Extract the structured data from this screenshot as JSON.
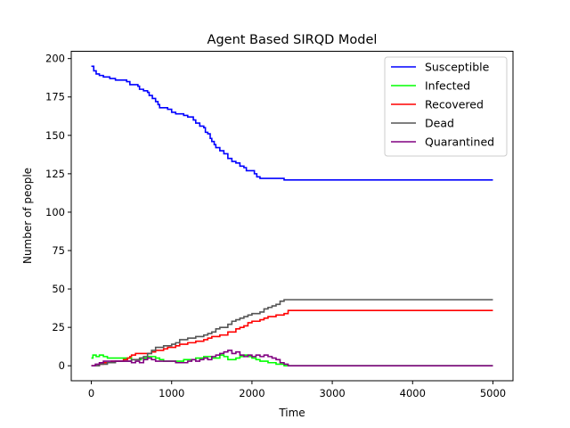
{
  "chart_data": {
    "type": "line",
    "title": "Agent Based SIRQD Model",
    "xlabel": "Time",
    "ylabel": "Number of people",
    "xlim": [
      -250,
      5250
    ],
    "ylim": [
      -9.75,
      204.75
    ],
    "xticks": [
      0,
      1000,
      2000,
      3000,
      4000,
      5000
    ],
    "yticks": [
      0,
      25,
      50,
      75,
      100,
      125,
      150,
      175,
      200
    ],
    "grid": false,
    "legend_position": "top-right",
    "series": [
      {
        "name": "Susceptible",
        "color": "#0000ff",
        "points": [
          [
            0,
            195
          ],
          [
            30,
            192
          ],
          [
            60,
            190
          ],
          [
            100,
            189
          ],
          [
            150,
            188
          ],
          [
            200,
            188
          ],
          [
            230,
            187
          ],
          [
            300,
            186
          ],
          [
            400,
            186
          ],
          [
            440,
            185
          ],
          [
            480,
            183
          ],
          [
            550,
            183
          ],
          [
            580,
            182
          ],
          [
            600,
            180
          ],
          [
            650,
            179
          ],
          [
            700,
            178
          ],
          [
            720,
            176
          ],
          [
            760,
            174
          ],
          [
            800,
            172
          ],
          [
            830,
            170
          ],
          [
            850,
            168
          ],
          [
            900,
            168
          ],
          [
            950,
            167
          ],
          [
            1000,
            165
          ],
          [
            1050,
            164
          ],
          [
            1100,
            164
          ],
          [
            1150,
            163
          ],
          [
            1200,
            162
          ],
          [
            1250,
            162
          ],
          [
            1270,
            160
          ],
          [
            1300,
            158
          ],
          [
            1350,
            156
          ],
          [
            1400,
            155
          ],
          [
            1420,
            152
          ],
          [
            1450,
            151
          ],
          [
            1480,
            148
          ],
          [
            1500,
            146
          ],
          [
            1530,
            144
          ],
          [
            1550,
            142
          ],
          [
            1600,
            140
          ],
          [
            1650,
            138
          ],
          [
            1700,
            135
          ],
          [
            1750,
            133
          ],
          [
            1800,
            132
          ],
          [
            1850,
            130
          ],
          [
            1900,
            129
          ],
          [
            1930,
            127
          ],
          [
            2000,
            127
          ],
          [
            2030,
            125
          ],
          [
            2060,
            123
          ],
          [
            2100,
            122
          ],
          [
            2300,
            122
          ],
          [
            2400,
            121
          ],
          [
            5000,
            121
          ]
        ]
      },
      {
        "name": "Infected",
        "color": "#00ff00",
        "points": [
          [
            0,
            5
          ],
          [
            20,
            7
          ],
          [
            60,
            6
          ],
          [
            100,
            7
          ],
          [
            150,
            6
          ],
          [
            200,
            5
          ],
          [
            300,
            5
          ],
          [
            400,
            5
          ],
          [
            500,
            4
          ],
          [
            560,
            4
          ],
          [
            620,
            5
          ],
          [
            700,
            6
          ],
          [
            750,
            6
          ],
          [
            800,
            5
          ],
          [
            850,
            4
          ],
          [
            900,
            3
          ],
          [
            1000,
            3
          ],
          [
            1100,
            3
          ],
          [
            1150,
            4
          ],
          [
            1250,
            4
          ],
          [
            1300,
            5
          ],
          [
            1400,
            6
          ],
          [
            1500,
            5
          ],
          [
            1550,
            5
          ],
          [
            1600,
            7
          ],
          [
            1650,
            6
          ],
          [
            1700,
            4
          ],
          [
            1750,
            4
          ],
          [
            1800,
            5
          ],
          [
            1850,
            6
          ],
          [
            1900,
            7
          ],
          [
            1950,
            6
          ],
          [
            2000,
            5
          ],
          [
            2050,
            4
          ],
          [
            2100,
            3
          ],
          [
            2200,
            2
          ],
          [
            2250,
            2
          ],
          [
            2300,
            1
          ],
          [
            2350,
            1
          ],
          [
            2400,
            0
          ],
          [
            5000,
            0
          ]
        ]
      },
      {
        "name": "Recovered",
        "color": "#ff0000",
        "points": [
          [
            0,
            0
          ],
          [
            100,
            1
          ],
          [
            150,
            2
          ],
          [
            250,
            3
          ],
          [
            400,
            4
          ],
          [
            450,
            5
          ],
          [
            480,
            6
          ],
          [
            500,
            7
          ],
          [
            550,
            8
          ],
          [
            700,
            8
          ],
          [
            750,
            9
          ],
          [
            800,
            10
          ],
          [
            900,
            11
          ],
          [
            950,
            12
          ],
          [
            1000,
            12
          ],
          [
            1050,
            13
          ],
          [
            1100,
            14
          ],
          [
            1200,
            15
          ],
          [
            1300,
            16
          ],
          [
            1400,
            17
          ],
          [
            1450,
            18
          ],
          [
            1500,
            19
          ],
          [
            1600,
            20
          ],
          [
            1700,
            22
          ],
          [
            1800,
            24
          ],
          [
            1850,
            25
          ],
          [
            1900,
            26
          ],
          [
            1950,
            28
          ],
          [
            2000,
            29
          ],
          [
            2100,
            30
          ],
          [
            2150,
            31
          ],
          [
            2200,
            32
          ],
          [
            2300,
            33
          ],
          [
            2400,
            34
          ],
          [
            2450,
            36
          ],
          [
            5000,
            36
          ]
        ]
      },
      {
        "name": "Dead",
        "color": "#555555",
        "points": [
          [
            0,
            0
          ],
          [
            100,
            1
          ],
          [
            200,
            2
          ],
          [
            300,
            3
          ],
          [
            450,
            3
          ],
          [
            500,
            4
          ],
          [
            600,
            5
          ],
          [
            650,
            6
          ],
          [
            700,
            8
          ],
          [
            750,
            10
          ],
          [
            800,
            12
          ],
          [
            900,
            13
          ],
          [
            1000,
            14
          ],
          [
            1050,
            15
          ],
          [
            1100,
            17
          ],
          [
            1200,
            18
          ],
          [
            1300,
            19
          ],
          [
            1400,
            20
          ],
          [
            1450,
            21
          ],
          [
            1500,
            22
          ],
          [
            1550,
            24
          ],
          [
            1600,
            25
          ],
          [
            1700,
            27
          ],
          [
            1750,
            29
          ],
          [
            1800,
            30
          ],
          [
            1850,
            31
          ],
          [
            1900,
            32
          ],
          [
            1950,
            33
          ],
          [
            2000,
            34
          ],
          [
            2100,
            35
          ],
          [
            2150,
            37
          ],
          [
            2200,
            38
          ],
          [
            2250,
            39
          ],
          [
            2300,
            40
          ],
          [
            2350,
            42
          ],
          [
            2400,
            43
          ],
          [
            5000,
            43
          ]
        ]
      },
      {
        "name": "Quarantined",
        "color": "#800080",
        "points": [
          [
            0,
            0
          ],
          [
            50,
            1
          ],
          [
            100,
            2
          ],
          [
            150,
            3
          ],
          [
            200,
            3
          ],
          [
            300,
            3
          ],
          [
            400,
            3
          ],
          [
            500,
            2
          ],
          [
            550,
            3
          ],
          [
            600,
            2
          ],
          [
            650,
            4
          ],
          [
            700,
            5
          ],
          [
            750,
            4
          ],
          [
            800,
            3
          ],
          [
            900,
            3
          ],
          [
            1000,
            3
          ],
          [
            1050,
            2
          ],
          [
            1150,
            2
          ],
          [
            1200,
            3
          ],
          [
            1250,
            4
          ],
          [
            1300,
            3
          ],
          [
            1350,
            4
          ],
          [
            1400,
            5
          ],
          [
            1450,
            4
          ],
          [
            1500,
            6
          ],
          [
            1550,
            7
          ],
          [
            1600,
            8
          ],
          [
            1650,
            9
          ],
          [
            1700,
            10
          ],
          [
            1750,
            8
          ],
          [
            1800,
            9
          ],
          [
            1850,
            7
          ],
          [
            1900,
            6
          ],
          [
            1950,
            7
          ],
          [
            2000,
            6
          ],
          [
            2050,
            7
          ],
          [
            2100,
            6
          ],
          [
            2150,
            7
          ],
          [
            2200,
            6
          ],
          [
            2250,
            5
          ],
          [
            2300,
            4
          ],
          [
            2350,
            2
          ],
          [
            2400,
            1
          ],
          [
            2450,
            0
          ],
          [
            5000,
            0
          ]
        ]
      }
    ]
  }
}
